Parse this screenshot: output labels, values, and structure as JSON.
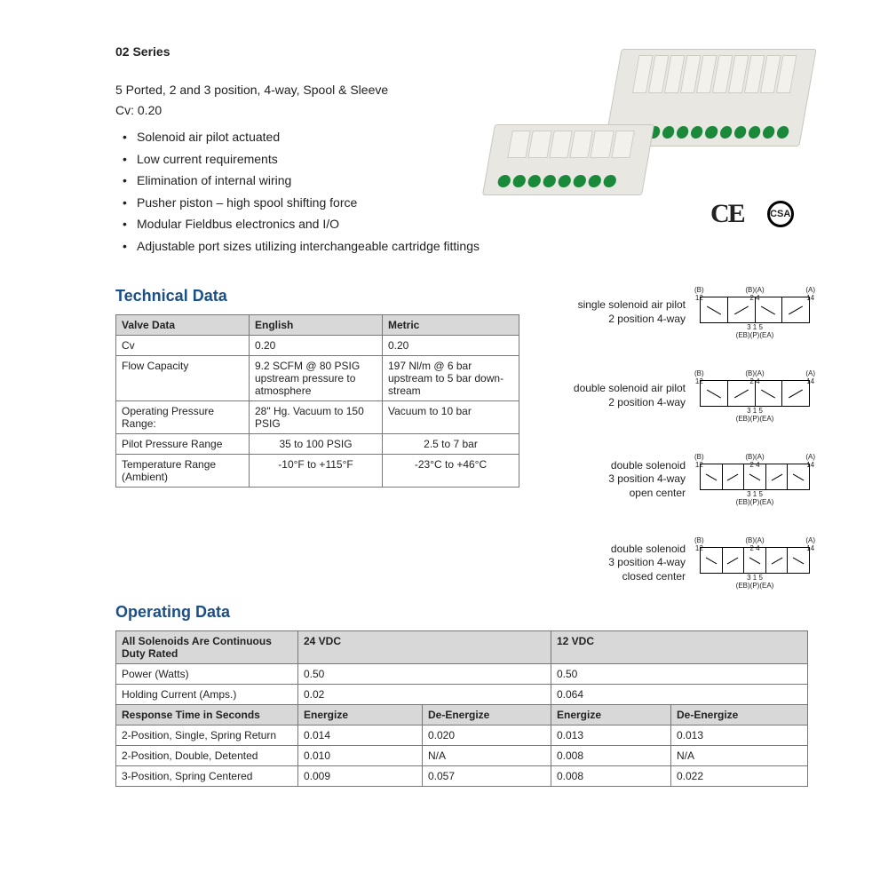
{
  "header": {
    "series_title": "02 Series",
    "subtitle": "5 Ported, 2 and 3 position, 4-way, Spool & Sleeve",
    "cv_line": "Cv: 0.20"
  },
  "features": [
    "Solenoid air pilot actuated",
    "Low current requirements",
    "Elimination of internal wiring",
    "Pusher piston – high spool shifting force",
    "Modular Fieldbus electronics and I/O",
    "Adjustable port sizes utilizing interchangeable cartridge fittings"
  ],
  "cert": {
    "ce": "CE",
    "csa": "CSA"
  },
  "tech": {
    "heading": "Technical Data",
    "columns": [
      "Valve Data",
      "English",
      "Metric"
    ],
    "rows": [
      {
        "label": "Cv",
        "english": "0.20",
        "metric": "0.20",
        "center": false
      },
      {
        "label": "Flow Capacity",
        "english": "9.2 SCFM @ 80 PSIG upstream pressure to atmosphere",
        "metric": "197 Nl/m @ 6 bar upstream to 5 bar down-stream",
        "center": false
      },
      {
        "label": "Operating Pressure Range:",
        "english": "28\" Hg. Vacuum to 150 PSIG",
        "metric": "Vacuum to 10 bar",
        "center": false
      },
      {
        "label": "Pilot Pressure Range",
        "english": "35 to 100 PSIG",
        "metric": "2.5 to 7 bar",
        "center": true
      },
      {
        "label": "Temperature Range (Ambient)",
        "english": "-10°F to +115°F",
        "metric": "-23°C to +46°C",
        "center": true
      }
    ]
  },
  "schematics": {
    "top_labels": {
      "b12": "(B)\n12",
      "ba24": "(B)(A)\n2 4",
      "a14": "(A)\n14"
    },
    "bottom_label": "3 1 5\n(EB)(P)(EA)",
    "items": [
      {
        "label": "single solenoid air pilot\n2 position 4-way",
        "boxes": 2
      },
      {
        "label": "double solenoid air pilot\n2 position 4-way",
        "boxes": 2
      },
      {
        "label": "double solenoid\n3 position 4-way\nopen center",
        "boxes": 3
      },
      {
        "label": "double solenoid\n3 position 4-way\nclosed center",
        "boxes": 3
      }
    ]
  },
  "operating": {
    "heading": "Operating Data",
    "header_row1": [
      "All Solenoids Are Continuous Duty Rated",
      "24 VDC",
      "12 VDC"
    ],
    "simple_rows": [
      {
        "label": "Power (Watts)",
        "v24": "0.50",
        "v12": "0.50"
      },
      {
        "label": "Holding Current (Amps.)",
        "v24": "0.02",
        "v12": "0.064"
      }
    ],
    "sub_header": [
      "Response Time in Seconds",
      "Energize",
      "De-Energize",
      "Energize",
      "De-Energize"
    ],
    "response_rows": [
      {
        "label": "2-Position, Single, Spring Return",
        "c": [
          "0.014",
          "0.020",
          "0.013",
          "0.013"
        ]
      },
      {
        "label": "2-Position, Double, Detented",
        "c": [
          "0.010",
          "N/A",
          "0.008",
          "N/A"
        ]
      },
      {
        "label": "3-Position, Spring Centered",
        "c": [
          "0.009",
          "0.057",
          "0.008",
          "0.022"
        ]
      }
    ]
  },
  "colors": {
    "heading": "#1b4f8a",
    "table_header_bg": "#d8d8d8",
    "border": "#777777",
    "port_green": "#1a8a3a",
    "body_text": "#222222"
  }
}
